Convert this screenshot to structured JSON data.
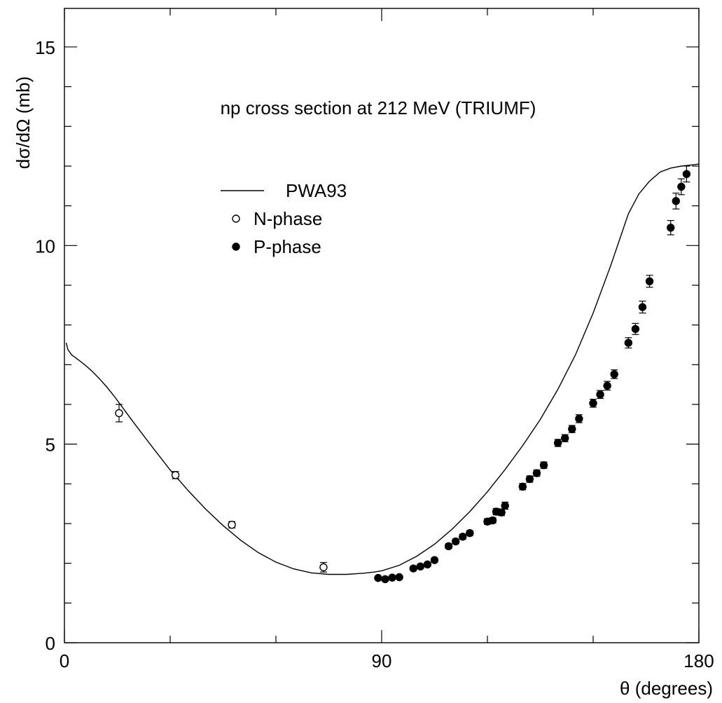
{
  "chart_data": {
    "type": "scatter",
    "title": "np  cross section at 212 MeV (TRIUMF)",
    "xlabel": "θ (degrees)",
    "ylabel": "dσ/dΩ (mb)",
    "xlim": [
      0,
      180
    ],
    "ylim": [
      0,
      16
    ],
    "x_major_ticks": [
      0,
      90,
      180
    ],
    "x_tick_labels": [
      "0",
      "90",
      "180"
    ],
    "x_minor_step": 30,
    "y_major_ticks": [
      0,
      5,
      10,
      15
    ],
    "y_tick_labels": [
      "0",
      "5",
      "10",
      "15"
    ],
    "y_minor_step": 1,
    "grid": false,
    "legend_placement": "left-center",
    "legend": [
      {
        "label": "PWA93",
        "marker": "line"
      },
      {
        "label": "N-phase",
        "marker": "open-circle"
      },
      {
        "label": "P-phase",
        "marker": "filled-circle"
      }
    ],
    "series": [
      {
        "name": "PWA93",
        "kind": "line",
        "x": [
          0.5,
          1,
          2,
          4,
          6,
          8,
          10,
          12,
          14,
          16,
          20,
          25,
          30,
          35,
          40,
          45,
          50,
          55,
          60,
          65,
          70,
          75,
          80,
          85,
          88,
          90,
          95,
          100,
          105,
          110,
          115,
          120,
          125,
          130,
          135,
          140,
          145,
          150,
          155,
          160,
          163,
          166,
          169,
          172,
          175,
          178,
          180
        ],
        "y": [
          7.55,
          7.38,
          7.25,
          7.12,
          6.98,
          6.82,
          6.64,
          6.44,
          6.22,
          5.98,
          5.5,
          4.92,
          4.35,
          3.84,
          3.37,
          2.95,
          2.58,
          2.27,
          2.03,
          1.86,
          1.76,
          1.72,
          1.72,
          1.75,
          1.78,
          1.81,
          1.95,
          2.18,
          2.48,
          2.86,
          3.3,
          3.8,
          4.36,
          4.96,
          5.62,
          6.38,
          7.25,
          8.3,
          9.5,
          10.8,
          11.3,
          11.62,
          11.85,
          11.95,
          12.0,
          12.03,
          12.05
        ]
      },
      {
        "name": "N-phase",
        "kind": "points",
        "marker": "open-circle",
        "x": [
          15.5,
          31.5,
          47.5,
          73.5
        ],
        "y": [
          5.78,
          4.22,
          2.97,
          1.9
        ],
        "err": [
          0.22,
          0.09,
          0.08,
          0.12
        ]
      },
      {
        "name": "P-phase",
        "kind": "points",
        "marker": "filled-circle",
        "x": [
          89,
          91,
          93,
          95,
          99,
          101,
          103,
          105,
          109,
          111,
          113,
          115,
          120,
          121.5,
          122.5,
          124,
          125,
          130,
          132,
          134,
          136,
          140,
          142,
          144,
          146,
          150,
          152,
          154,
          156,
          160,
          162,
          164,
          166,
          172,
          173.5,
          175,
          176.5
        ],
        "y": [
          1.63,
          1.6,
          1.64,
          1.65,
          1.87,
          1.92,
          1.97,
          2.08,
          2.43,
          2.55,
          2.67,
          2.76,
          3.05,
          3.08,
          3.3,
          3.28,
          3.45,
          3.93,
          4.12,
          4.27,
          4.47,
          5.03,
          5.15,
          5.38,
          5.64,
          6.03,
          6.25,
          6.47,
          6.76,
          7.55,
          7.9,
          8.45,
          9.1,
          10.45,
          11.12,
          11.48,
          11.8
        ],
        "err": [
          0.04,
          0.04,
          0.04,
          0.04,
          0.05,
          0.05,
          0.05,
          0.05,
          0.06,
          0.06,
          0.06,
          0.06,
          0.07,
          0.07,
          0.08,
          0.08,
          0.09,
          0.08,
          0.08,
          0.08,
          0.08,
          0.09,
          0.09,
          0.09,
          0.1,
          0.1,
          0.1,
          0.11,
          0.11,
          0.13,
          0.14,
          0.15,
          0.15,
          0.18,
          0.2,
          0.2,
          0.2
        ]
      }
    ]
  }
}
